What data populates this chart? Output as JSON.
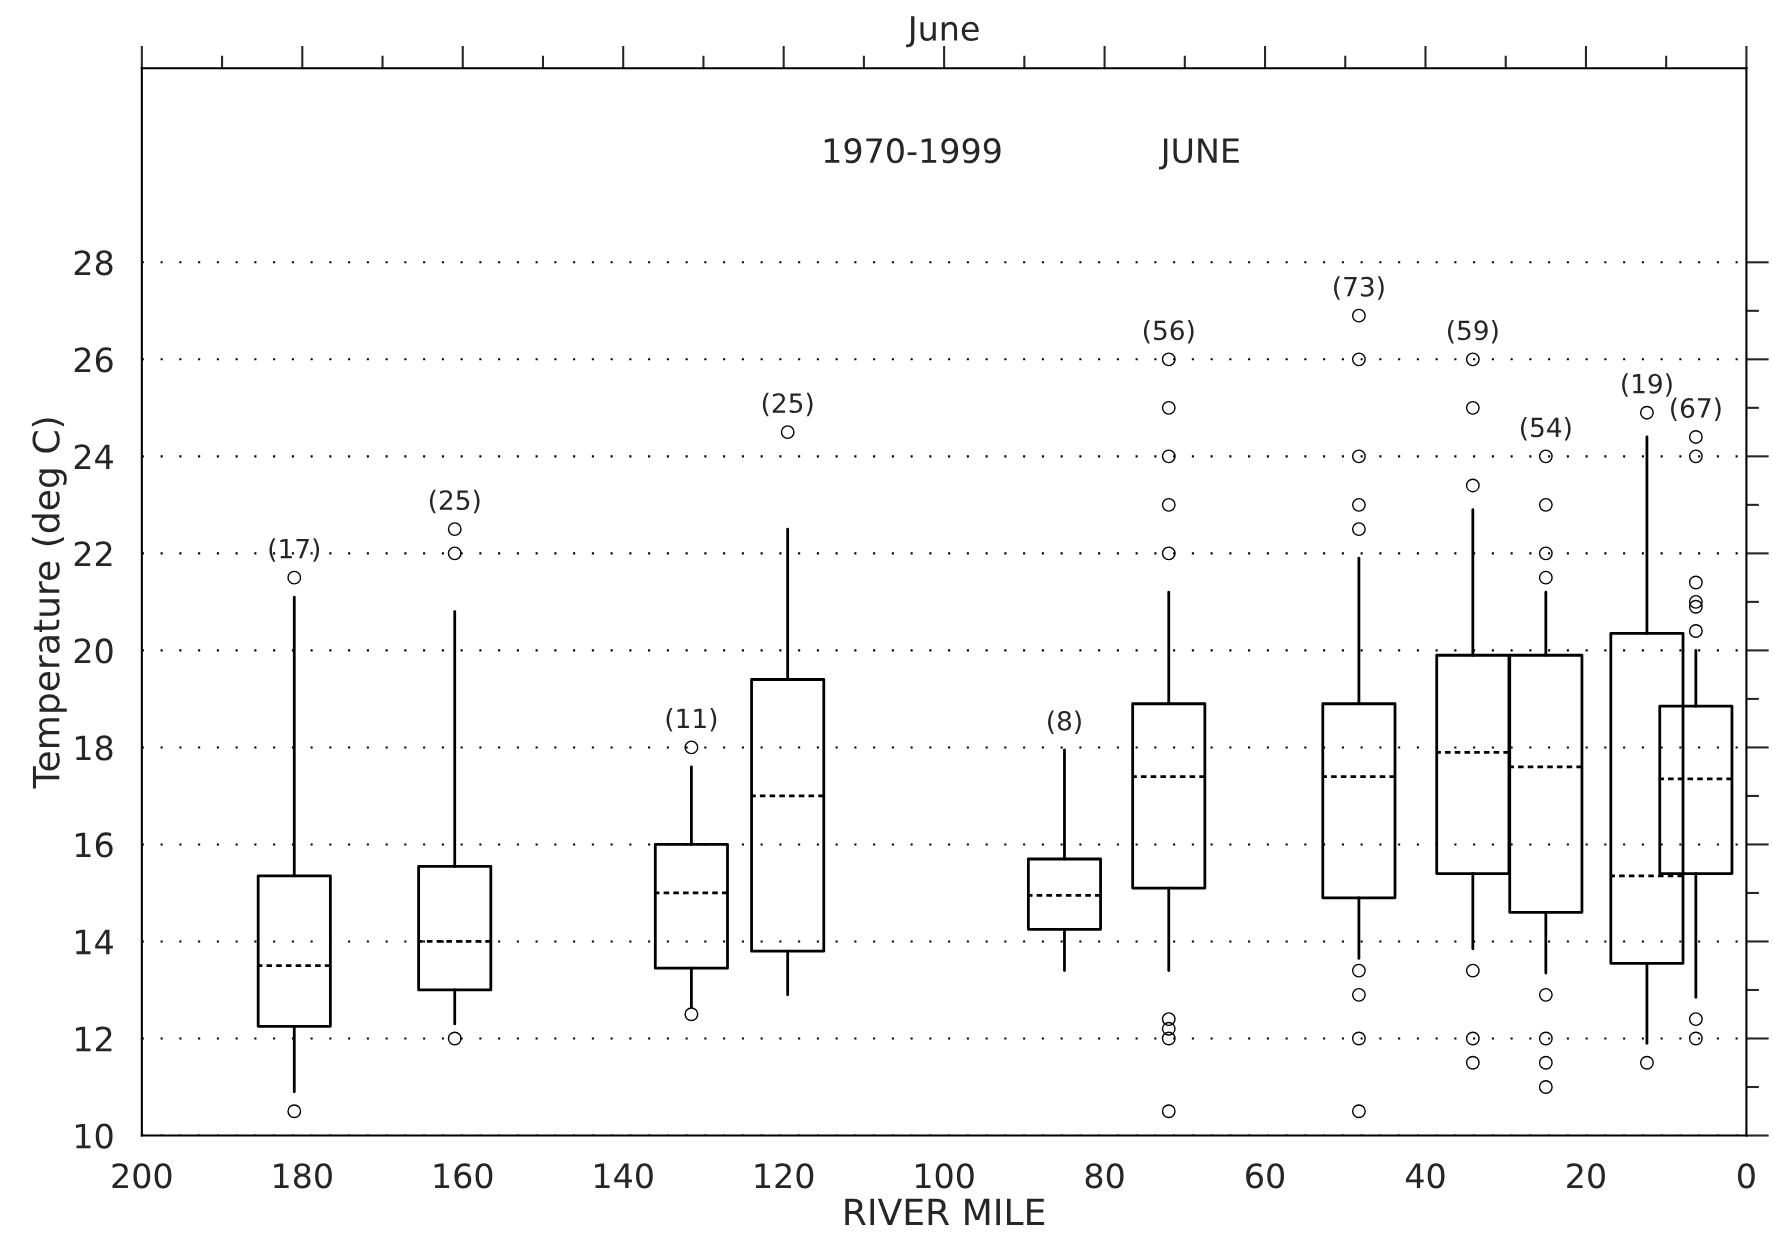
{
  "chart_data": {
    "type": "box",
    "title": "June",
    "xlabel": "RIVER MILE",
    "ylabel": "Temperature (deg C)",
    "x": [
      181,
      161,
      131.5,
      119.5,
      85,
      72,
      48.3,
      34.1,
      25,
      12.4,
      6.3
    ],
    "boxes": [
      {
        "low": 10.9,
        "q1": 12.25,
        "median": 13.5,
        "q3": 15.35,
        "high": 21.1,
        "outliers": [
          21.5,
          10.5
        ]
      },
      {
        "low": 12.3,
        "q1": 13.0,
        "median": 14.0,
        "q3": 15.55,
        "high": 20.8,
        "outliers": [
          22.5,
          22.0,
          12.0
        ]
      },
      {
        "low": 12.65,
        "q1": 13.45,
        "median": 15.0,
        "q3": 16.0,
        "high": 17.6,
        "outliers": [
          18.0,
          12.5
        ]
      },
      {
        "low": 12.9,
        "q1": 13.8,
        "median": 17.0,
        "q3": 19.4,
        "high": 22.5,
        "outliers": [
          24.5
        ]
      },
      {
        "low": 13.4,
        "q1": 14.25,
        "median": 14.95,
        "q3": 15.7,
        "high": 17.95
      },
      {
        "low": 13.4,
        "q1": 15.1,
        "median": 17.4,
        "q3": 18.9,
        "high": 21.2,
        "outliers": [
          26.0,
          25.0,
          24.0,
          23.0,
          22.0,
          12.4,
          12.2,
          12.0,
          10.5
        ]
      },
      {
        "low": 13.65,
        "q1": 14.9,
        "median": 17.4,
        "q3": 18.9,
        "high": 21.9,
        "outliers": [
          26.9,
          26.0,
          24.0,
          23.0,
          22.5,
          13.4,
          12.9,
          12.0,
          10.5
        ]
      },
      {
        "low": 13.85,
        "q1": 15.4,
        "median": 17.9,
        "q3": 19.9,
        "high": 22.9,
        "outliers": [
          26.0,
          25.0,
          23.4,
          13.4,
          12.0,
          11.5
        ]
      },
      {
        "low": 13.35,
        "q1": 14.6,
        "median": 17.6,
        "q3": 19.9,
        "high": 21.2,
        "outliers": [
          24.0,
          23.0,
          22.0,
          21.5,
          12.9,
          12.0,
          11.5,
          11.0
        ]
      },
      {
        "low": 11.9,
        "q1": 13.55,
        "median": 15.35,
        "q3": 20.35,
        "high": 24.4,
        "outliers": [
          24.9,
          11.5
        ]
      },
      {
        "low": 12.85,
        "q1": 15.4,
        "median": 17.35,
        "q3": 18.85,
        "high": 20.0,
        "outliers": [
          24.4,
          24.0,
          21.4,
          21.0,
          20.9,
          20.4,
          12.4,
          12.0
        ]
      }
    ],
    "xlim": [
      200,
      0
    ],
    "xticks": [
      200,
      {
        "value": 190,
        "label": null
      },
      180,
      {
        "value": 170,
        "label": null
      },
      160,
      {
        "value": 150,
        "label": null
      },
      140,
      {
        "value": 130,
        "label": null
      },
      120,
      {
        "value": 110,
        "label": null
      },
      100,
      {
        "value": 90,
        "label": null
      },
      80,
      {
        "value": 70,
        "label": null
      },
      60,
      {
        "value": 50,
        "label": null
      },
      40,
      {
        "value": 30,
        "label": null
      },
      20,
      {
        "value": 10,
        "label": null
      },
      0
    ],
    "ylim": [
      10,
      32
    ],
    "yticks": [
      10,
      {
        "value": 11,
        "label": null
      },
      12,
      {
        "value": 13,
        "label": null
      },
      14,
      {
        "value": 15,
        "label": null
      },
      16,
      {
        "value": 17,
        "label": null
      },
      18,
      {
        "value": 19,
        "label": null
      },
      20,
      {
        "value": 21,
        "label": null
      },
      22,
      {
        "value": 23,
        "label": null
      },
      24,
      {
        "value": 25,
        "label": null
      },
      26,
      {
        "value": 27,
        "label": null
      },
      28
    ],
    "grid": "y",
    "marker": "circle",
    "annotations": [
      "1970-1999",
      "JUNE",
      "(17)",
      "(25)",
      "(11)",
      "(25)",
      "(8)",
      "(56)",
      "(73)",
      "(59)",
      "(54)",
      "(19)",
      "(67)"
    ]
  }
}
